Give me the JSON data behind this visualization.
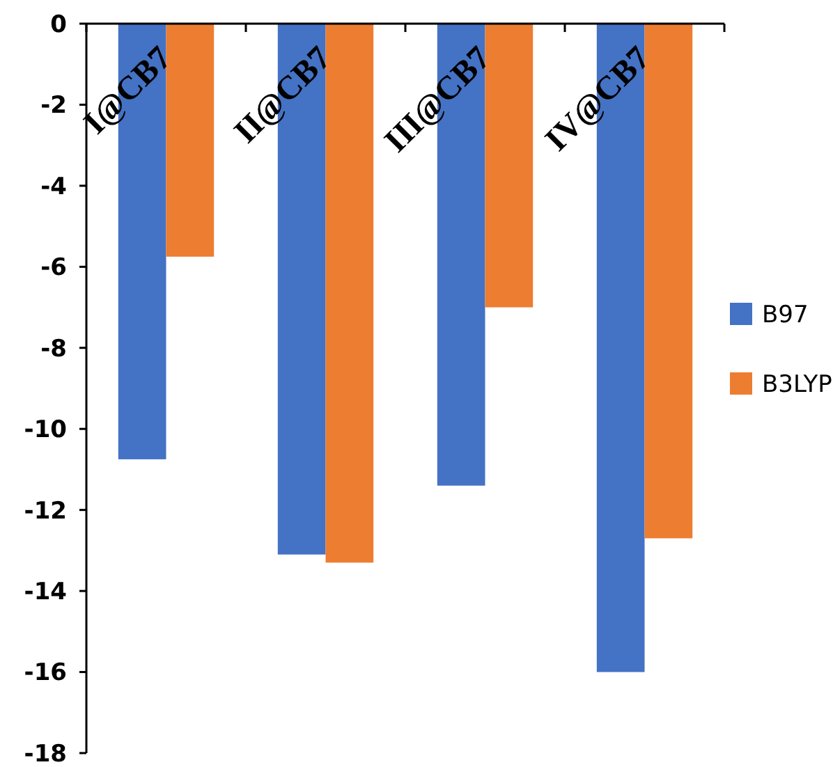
{
  "chart_data": {
    "type": "bar",
    "categories": [
      "I@CB7",
      "II@CB7",
      "III@CB7",
      "IV@CB7"
    ],
    "series": [
      {
        "name": "B97",
        "color": "#4472c4",
        "values": [
          -10.75,
          -13.1,
          -11.4,
          -16.0
        ]
      },
      {
        "name": "B3LYP",
        "color": "#ed7d31",
        "values": [
          -5.75,
          -13.3,
          -7.0,
          -12.7
        ]
      }
    ],
    "ylim": [
      -18,
      0
    ],
    "yticks": [
      -18,
      -16,
      -14,
      -12,
      -10,
      -8,
      -6,
      -4,
      -2,
      0
    ],
    "grid": false,
    "legend": "right"
  }
}
